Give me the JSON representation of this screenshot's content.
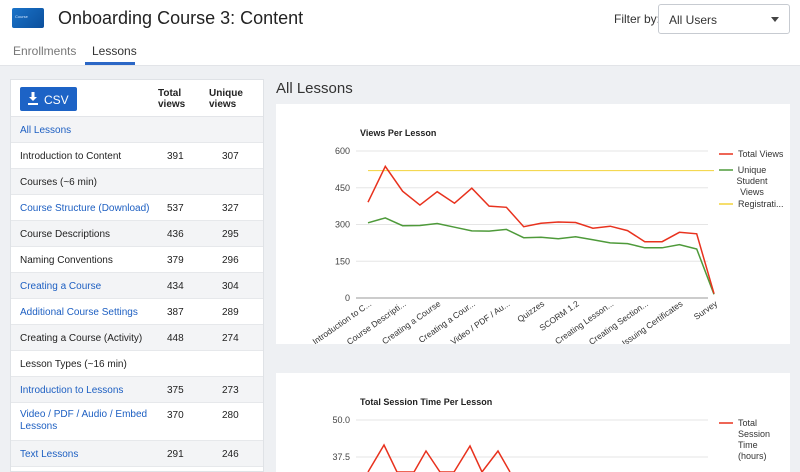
{
  "header": {
    "logo_text": "Course",
    "title": "Onboarding Course 3: Content",
    "filter_label": "Filter by:",
    "filter_value": "All Users"
  },
  "tabs": [
    {
      "label": "Enrollments",
      "active": false
    },
    {
      "label": "Lessons",
      "active": true
    }
  ],
  "table": {
    "csv_label": "CSV",
    "col_total": "Total views",
    "col_unique": "Unique views",
    "rows": [
      {
        "name": "All Lessons",
        "total": "",
        "unique": "",
        "link": true
      },
      {
        "name": "Introduction to Content",
        "total": "391",
        "unique": "307",
        "link": false
      },
      {
        "name": "Courses (~6 min)",
        "total": "",
        "unique": "",
        "link": false
      },
      {
        "name": "Course Structure (Download)",
        "total": "537",
        "unique": "327",
        "link": true
      },
      {
        "name": "Course Descriptions",
        "total": "436",
        "unique": "295",
        "link": false
      },
      {
        "name": "Naming Conventions",
        "total": "379",
        "unique": "296",
        "link": false
      },
      {
        "name": "Creating a Course",
        "total": "434",
        "unique": "304",
        "link": true
      },
      {
        "name": "Additional Course Settings",
        "total": "387",
        "unique": "289",
        "link": true
      },
      {
        "name": "Creating a Course (Activity)",
        "total": "448",
        "unique": "274",
        "link": false
      },
      {
        "name": "Lesson Types (~16 min)",
        "total": "",
        "unique": "",
        "link": false
      },
      {
        "name": "Introduction to Lessons",
        "total": "375",
        "unique": "273",
        "link": true
      },
      {
        "name": "Video / PDF / Audio / Embed Lessons",
        "total": "370",
        "unique": "280",
        "link": true
      },
      {
        "name": "Text Lessons",
        "total": "291",
        "unique": "246",
        "link": true
      }
    ]
  },
  "section_title": "All Lessons",
  "colors": {
    "total": "#e8321e",
    "unique": "#4e9a3a",
    "registration": "#f2d33a",
    "accent": "#1d63c6"
  },
  "chart_data": [
    {
      "type": "line",
      "title": "Views Per Lesson",
      "ylim": [
        0,
        600
      ],
      "yticks": [
        "0",
        "150",
        "300",
        "450",
        "600"
      ],
      "x_tick_labels": [
        "Introduction to C...",
        "Course Descripti...",
        "Creating a Course",
        "Creating a Cour...",
        "Video / PDF / Au...",
        "Quizzes",
        "SCORM 1.2",
        "Creating Lesson...",
        "Creating Section...",
        "Issuing Certificates",
        "Survey"
      ],
      "series": [
        {
          "name": "Total Views",
          "color": "#e8321e",
          "values": [
            391,
            537,
            436,
            379,
            434,
            387,
            448,
            375,
            370,
            291,
            305,
            310,
            308,
            285,
            293,
            275,
            230,
            230,
            268,
            262,
            18
          ]
        },
        {
          "name": "Unique Student Views",
          "color": "#4e9a3a",
          "values": [
            307,
            327,
            295,
            296,
            304,
            289,
            274,
            273,
            280,
            246,
            248,
            242,
            250,
            238,
            225,
            222,
            205,
            205,
            218,
            200,
            15
          ]
        },
        {
          "name": "Registrati...",
          "color": "#f2d33a",
          "values": [
            520,
            520,
            520,
            520,
            520,
            520,
            520,
            520,
            520,
            520,
            520,
            520,
            520,
            520,
            520,
            520,
            520,
            520,
            520,
            520,
            520
          ]
        }
      ]
    },
    {
      "type": "line",
      "title": "Total Session Time Per Lesson",
      "yticks": [
        "50.0",
        "37.5"
      ],
      "series": [
        {
          "name": "Total Session Time (hours)",
          "color": "#e8321e"
        }
      ]
    }
  ]
}
